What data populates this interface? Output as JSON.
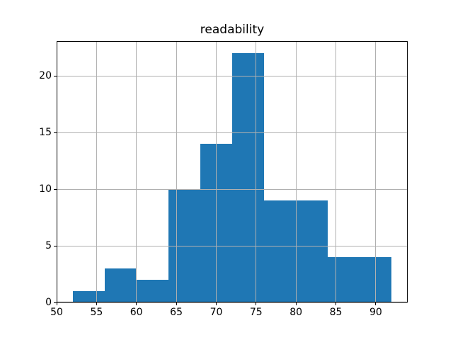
{
  "figure": {
    "background": "#ffffff"
  },
  "chart_data": {
    "type": "bar",
    "kind": "histogram",
    "title": "readability",
    "bin_edges": [
      52,
      56,
      60,
      64,
      68,
      72,
      76,
      80,
      84,
      88,
      92
    ],
    "counts": [
      1,
      3,
      2,
      10,
      14,
      22,
      9,
      9,
      4,
      4
    ],
    "xlabel": "",
    "ylabel": "",
    "xlim": [
      50,
      94
    ],
    "ylim": [
      0,
      23.1
    ],
    "xticks": [
      50,
      55,
      60,
      65,
      70,
      75,
      80,
      85,
      90
    ],
    "yticks": [
      0,
      5,
      10,
      15,
      20
    ],
    "grid": true,
    "grid_over_bars": true,
    "legend": "none",
    "colors": {
      "bar": "#1f77b4",
      "grid": "#b0b0b0",
      "spine": "#000000",
      "text": "#000000"
    }
  }
}
